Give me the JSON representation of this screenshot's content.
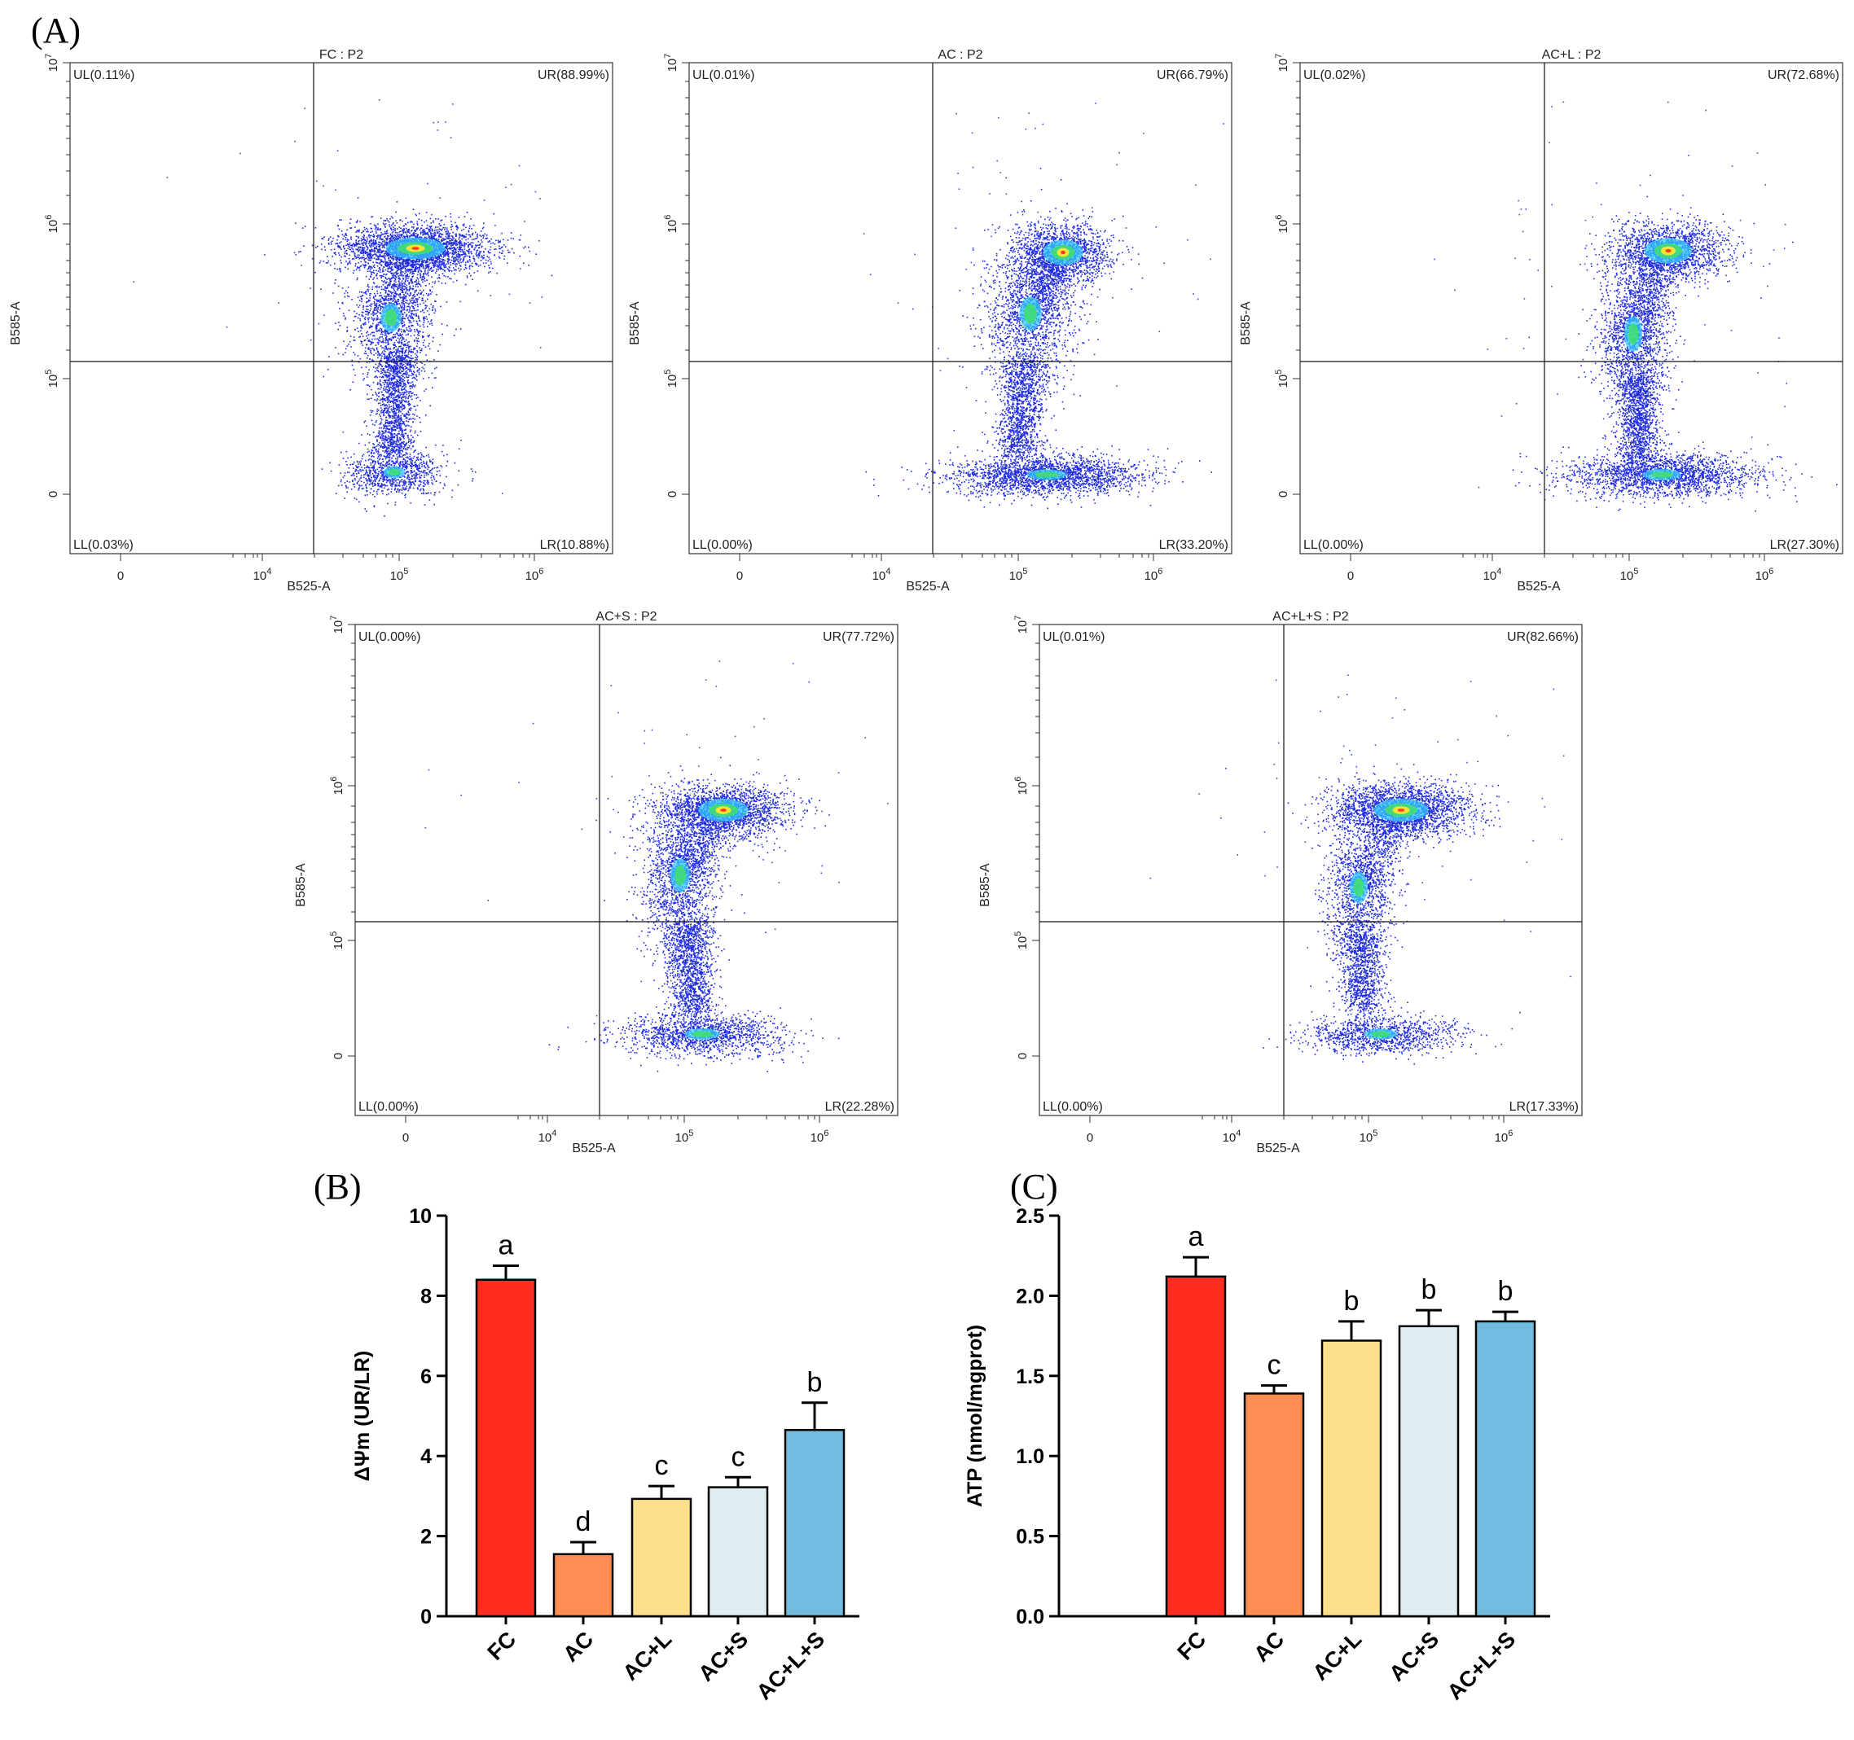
{
  "panel_labels": {
    "a": "(A)",
    "b": "(B)",
    "c": "(C)"
  },
  "colors": {
    "FC": "#ff2d1f",
    "AC": "#ff8c52",
    "AC+L": "#fee08c",
    "AC+S": "#deeef3",
    "AC+L+S": "#72bddf"
  },
  "flow_panels": [
    {
      "title": "FC : P2",
      "xlabel": "B525-A",
      "ylabel": "B585-A",
      "xticks": [
        "0",
        "10^4",
        "10^5",
        "10^6"
      ],
      "yticks": [
        "0",
        "10^5",
        "10^6",
        "10^7"
      ],
      "UL": "UL(0.11%)",
      "UR": "UR(88.99%)",
      "LL": "LL(0.03%)",
      "LR": "LR(10.88%)"
    },
    {
      "title": "AC : P2",
      "xlabel": "B525-A",
      "ylabel": "B585-A",
      "xticks": [
        "0",
        "10^4",
        "10^5",
        "10^6"
      ],
      "yticks": [
        "0",
        "10^5",
        "10^6",
        "10^7"
      ],
      "UL": "UL(0.01%)",
      "UR": "UR(66.79%)",
      "LL": "LL(0.00%)",
      "LR": "LR(33.20%)"
    },
    {
      "title": "AC+L : P2",
      "xlabel": "B525-A",
      "ylabel": "B585-A",
      "xticks": [
        "0",
        "10^4",
        "10^5",
        "10^6"
      ],
      "yticks": [
        "0",
        "10^5",
        "10^6",
        "10^7"
      ],
      "UL": "UL(0.02%)",
      "UR": "UR(72.68%)",
      "LL": "LL(0.00%)",
      "LR": "LR(27.30%)"
    },
    {
      "title": "AC+S : P2",
      "xlabel": "B525-A",
      "ylabel": "B585-A",
      "xticks": [
        "0",
        "10^4",
        "10^5",
        "10^6"
      ],
      "yticks": [
        "0",
        "10^5",
        "10^6",
        "10^7"
      ],
      "UL": "UL(0.00%)",
      "UR": "UR(77.72%)",
      "LL": "LL(0.00%)",
      "LR": "LR(22.28%)"
    },
    {
      "title": "AC+L+S : P2",
      "xlabel": "B525-A",
      "ylabel": "B585-A",
      "xticks": [
        "0",
        "10^4",
        "10^5",
        "10^6"
      ],
      "yticks": [
        "0",
        "10^5",
        "10^6",
        "10^7"
      ],
      "UL": "UL(0.01%)",
      "UR": "UR(82.66%)",
      "LL": "LL(0.00%)",
      "LR": "LR(17.33%)"
    }
  ],
  "chart_data": [
    {
      "type": "bar",
      "panel": "B",
      "categories": [
        "FC",
        "AC",
        "AC+L",
        "AC+S",
        "AC+L+S"
      ],
      "values": [
        8.4,
        1.55,
        2.93,
        3.22,
        4.65
      ],
      "errors": [
        0.35,
        0.3,
        0.32,
        0.25,
        0.68
      ],
      "significance": [
        "a",
        "d",
        "c",
        "c",
        "b"
      ],
      "ylabel": "ΔΨm (UR/LR)",
      "ylim": [
        0,
        10
      ],
      "yticks": [
        "0",
        "2",
        "4",
        "6",
        "8",
        "10"
      ]
    },
    {
      "type": "bar",
      "panel": "C",
      "categories": [
        "FC",
        "AC",
        "AC+L",
        "AC+S",
        "AC+L+S"
      ],
      "values": [
        2.12,
        1.39,
        1.72,
        1.81,
        1.84
      ],
      "errors": [
        0.12,
        0.05,
        0.12,
        0.1,
        0.06
      ],
      "significance": [
        "a",
        "c",
        "b",
        "b",
        "b"
      ],
      "ylabel": "ATP (nmol/mgprot)",
      "ylim": [
        0,
        2.5
      ],
      "yticks": [
        "0.0",
        "0.5",
        "1.0",
        "1.5",
        "2.0",
        "2.5"
      ]
    }
  ]
}
